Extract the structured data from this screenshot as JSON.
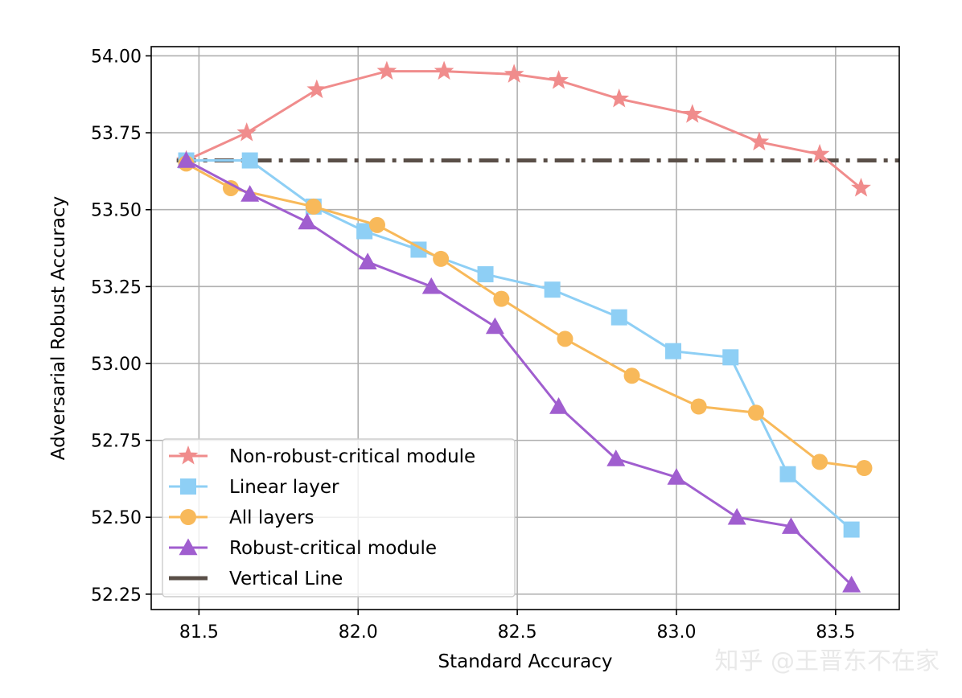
{
  "chart_data": {
    "type": "line",
    "xlabel": "Standard Accuracy",
    "ylabel": "Adversarial Robust Accuracy",
    "xlim": [
      81.35,
      83.7
    ],
    "ylim": [
      52.2,
      54.03
    ],
    "xticks": [
      81.5,
      82.0,
      82.5,
      83.0,
      83.5
    ],
    "xtick_labels": [
      "81.5",
      "82.0",
      "82.5",
      "83.0",
      "83.5"
    ],
    "yticks": [
      52.25,
      52.5,
      52.75,
      53.0,
      53.25,
      53.5,
      53.75,
      54.0
    ],
    "ytick_labels": [
      "52.25",
      "52.50",
      "52.75",
      "53.00",
      "53.25",
      "53.50",
      "53.75",
      "54.00"
    ],
    "grid": true,
    "legend_position": "lower-left",
    "series": [
      {
        "name": "Non-robust-critical module",
        "color": "#f08c8c",
        "marker": "star",
        "x": [
          81.46,
          81.65,
          81.87,
          82.09,
          82.27,
          82.49,
          82.63,
          82.82,
          83.05,
          83.26,
          83.45,
          83.58
        ],
        "y": [
          53.66,
          53.75,
          53.89,
          53.95,
          53.95,
          53.94,
          53.92,
          53.86,
          53.81,
          53.72,
          53.68,
          53.57
        ]
      },
      {
        "name": "Linear layer",
        "color": "#8ecff5",
        "marker": "square",
        "x": [
          81.46,
          81.66,
          81.86,
          82.02,
          82.19,
          82.4,
          82.61,
          82.82,
          82.99,
          83.17,
          83.35,
          83.55
        ],
        "y": [
          53.66,
          53.66,
          53.51,
          53.43,
          53.37,
          53.29,
          53.24,
          53.15,
          53.04,
          53.02,
          52.64,
          52.46
        ]
      },
      {
        "name": "All layers",
        "color": "#f8b95a",
        "marker": "circle",
        "x": [
          81.46,
          81.6,
          81.86,
          82.06,
          82.26,
          82.45,
          82.65,
          82.86,
          83.07,
          83.25,
          83.45,
          83.59
        ],
        "y": [
          53.65,
          53.57,
          53.51,
          53.45,
          53.34,
          53.21,
          53.08,
          52.96,
          52.86,
          52.84,
          52.68,
          52.66
        ]
      },
      {
        "name": "Robust-critical module",
        "color": "#a05ecf",
        "marker": "triangle",
        "x": [
          81.46,
          81.66,
          81.84,
          82.03,
          82.23,
          82.43,
          82.63,
          82.81,
          83.0,
          83.19,
          83.36,
          83.55
        ],
        "y": [
          53.66,
          53.55,
          53.46,
          53.33,
          53.25,
          53.12,
          52.86,
          52.69,
          52.63,
          52.5,
          52.47,
          52.28
        ]
      }
    ],
    "reference_line": {
      "name": "Vertical Line",
      "color": "#5a4f48",
      "style": "dash-dot",
      "y": 53.66,
      "x_start": 81.43
    }
  },
  "watermark": "知乎 @王晋东不在家"
}
